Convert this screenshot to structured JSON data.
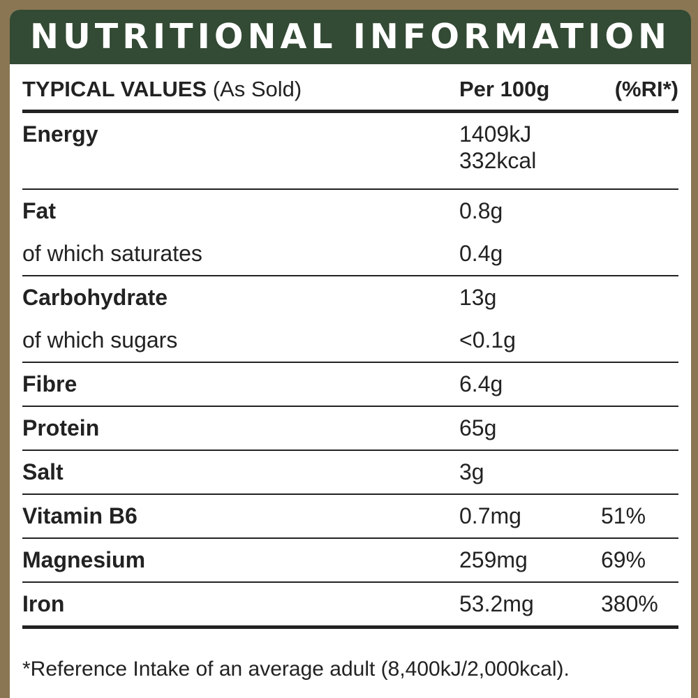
{
  "title": "NUTRITIONAL INFORMATION",
  "header": {
    "col1_bold": "TYPICAL VALUES",
    "col1_light": "(As Sold)",
    "col2": "Per 100g",
    "col3": "(%RI*)"
  },
  "groups": [
    {
      "rows": [
        {
          "label": "Energy",
          "bold": true,
          "value": "1409kJ",
          "value2": "332kcal",
          "ri": ""
        }
      ]
    },
    {
      "rows": [
        {
          "label": "Fat",
          "bold": true,
          "value": "0.8g",
          "ri": ""
        },
        {
          "label": "of which saturates",
          "bold": false,
          "value": "0.4g",
          "ri": ""
        }
      ]
    },
    {
      "rows": [
        {
          "label": "Carbohydrate",
          "bold": true,
          "value": "13g",
          "ri": ""
        },
        {
          "label": "of which sugars",
          "bold": false,
          "value": "<0.1g",
          "ri": ""
        }
      ]
    },
    {
      "rows": [
        {
          "label": "Fibre",
          "bold": true,
          "value": "6.4g",
          "ri": ""
        }
      ]
    },
    {
      "rows": [
        {
          "label": "Protein",
          "bold": true,
          "value": "65g",
          "ri": ""
        }
      ]
    },
    {
      "rows": [
        {
          "label": "Salt",
          "bold": true,
          "value": "3g",
          "ri": ""
        }
      ]
    },
    {
      "rows": [
        {
          "label": "Vitamin B6",
          "bold": true,
          "value": "0.7mg",
          "ri": "51%"
        }
      ]
    },
    {
      "rows": [
        {
          "label": "Magnesium",
          "bold": true,
          "value": "259mg",
          "ri": "69%"
        }
      ]
    },
    {
      "rows": [
        {
          "label": "Iron",
          "bold": true,
          "value": "53.2mg",
          "ri": "380%"
        }
      ]
    }
  ],
  "footnote": "*Reference Intake of an average adult (8,400kJ/2,000kcal).",
  "colors": {
    "banner": "#334a34",
    "border": "#8a7652",
    "text": "#222222"
  }
}
